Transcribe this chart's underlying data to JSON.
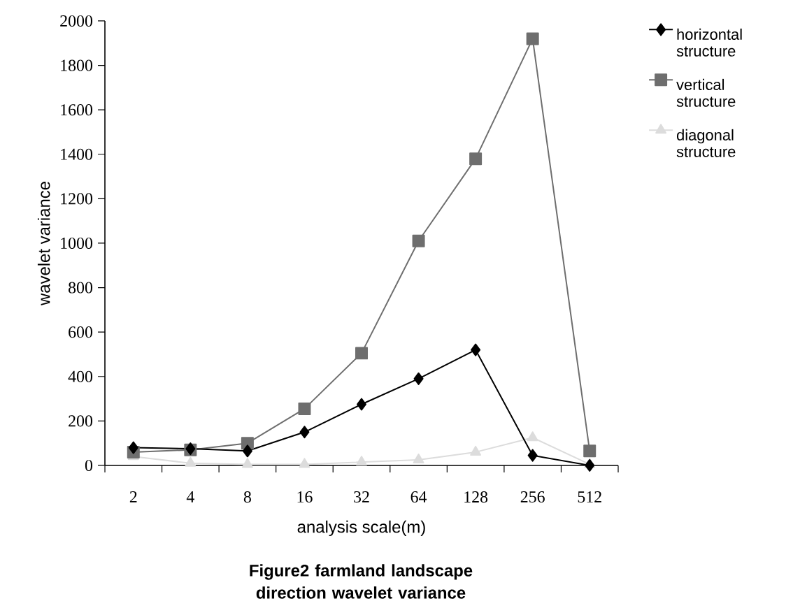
{
  "chart_data": {
    "type": "line",
    "title": "**Figure2  farmland landscape direction wavelet variance**",
    "xlabel": "analysis scale(m)",
    "ylabel": "wavelet variance",
    "categories": [
      "2",
      "4",
      "8",
      "16",
      "32",
      "64",
      "128",
      "256",
      "512"
    ],
    "series": [
      {
        "name": "horizontal structure",
        "color": "#000000",
        "marker": "diamond",
        "values": [
          80,
          75,
          65,
          150,
          275,
          390,
          520,
          45,
          0
        ]
      },
      {
        "name": "vertical structure",
        "color": "#6e6e6e",
        "marker": "square",
        "values": [
          60,
          70,
          100,
          255,
          505,
          1010,
          1380,
          1920,
          65
        ]
      },
      {
        "name": "diagonal structure",
        "color": "#dcdcdc",
        "marker": "triangle",
        "values": [
          40,
          10,
          5,
          5,
          15,
          25,
          60,
          125,
          5
        ]
      }
    ],
    "ylim": [
      0,
      2000
    ],
    "yticks": [
      0,
      200,
      400,
      600,
      800,
      1000,
      1200,
      1400,
      1600,
      1800,
      2000
    ],
    "grid": false,
    "legend": "right",
    "line_style": "solid"
  }
}
